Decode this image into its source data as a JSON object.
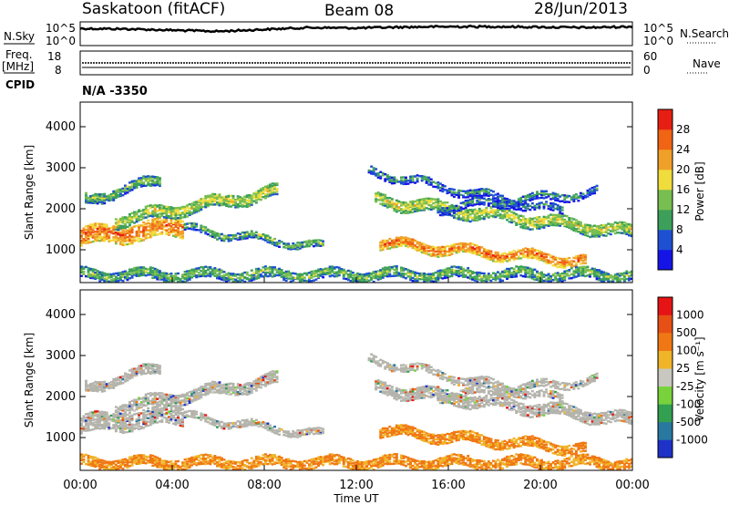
{
  "header": {
    "station": "Saskatoon (fitACF)",
    "beam": "Beam 08",
    "date": "28/Jun/2013"
  },
  "sidebar_labels": {
    "nsky": "N.Sky",
    "freq_top": "Freq.",
    "freq_unit": "[MHz]",
    "cpid": "CPID",
    "nsearch": "N.Search",
    "nave": "Nave",
    "cpid_value": "N/A -3350"
  },
  "chart_data": [
    {
      "type": "line",
      "name": "noise-strip",
      "y_ticks_left": [
        "10^5",
        "10^0"
      ],
      "y_ticks_right": [
        "10^5",
        "10^0"
      ],
      "series": [
        {
          "name": "N.Sky",
          "x_hours": [
            0,
            2,
            4,
            6,
            8,
            10,
            12,
            14,
            16,
            18,
            20,
            22,
            24
          ],
          "level": [
            0.72,
            0.7,
            0.65,
            0.6,
            0.68,
            0.76,
            0.74,
            0.78,
            0.8,
            0.8,
            0.78,
            0.76,
            0.8
          ]
        }
      ]
    },
    {
      "type": "line",
      "name": "freq-nave-strip",
      "y_ticks_left": [
        "18",
        "8"
      ],
      "y_ticks_right": [
        "60",
        "0"
      ]
    },
    {
      "type": "heatmap",
      "name": "power-panel",
      "ylabel": "Slant Range [km]",
      "y_ticks": [
        "1000",
        "2000",
        "3000",
        "4000"
      ],
      "ylim": [
        200,
        4600
      ],
      "xlim": [
        0,
        24
      ],
      "colorbar": {
        "label": "Power [dB]",
        "ticks": [
          "4",
          "8",
          "12",
          "16",
          "20",
          "24",
          "28"
        ],
        "colors": [
          "#1414e6",
          "#1e50d2",
          "#3ca05a",
          "#78be50",
          "#f0dc3c",
          "#f0a028",
          "#f06414",
          "#e61e14"
        ]
      }
    },
    {
      "type": "heatmap",
      "name": "velocity-panel",
      "ylabel": "Slant Range [km]",
      "y_ticks": [
        "1000",
        "2000",
        "3000",
        "4000"
      ],
      "ylim": [
        200,
        4600
      ],
      "xlim": [
        0,
        24
      ],
      "x_ticks": [
        "00:00",
        "04:00",
        "08:00",
        "12:00",
        "16:00",
        "20:00",
        "00:00"
      ],
      "xlabel": "Time UT",
      "colorbar": {
        "label": "Velocity [m s⁻¹]",
        "ticks": [
          "1000",
          "500",
          "100",
          "25",
          "-25",
          "-100",
          "-500",
          "-1000"
        ],
        "colors": [
          "#1e32c8",
          "#2878a0",
          "#32a050",
          "#78d23c",
          "#c8c8c0",
          "#f0b428",
          "#f07814",
          "#e65014",
          "#e61414"
        ]
      }
    }
  ],
  "colors": {
    "ground_scatter": "#b4b4ac",
    "frame": "#000000"
  }
}
